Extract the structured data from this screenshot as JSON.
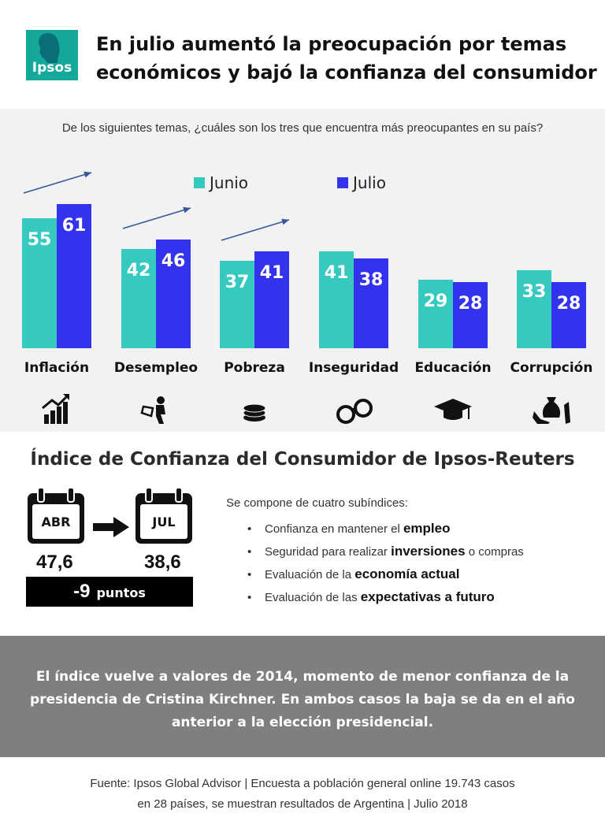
{
  "header": {
    "logo_text": "Ipsos",
    "title_line1": "En julio aumentó la preocupación por temas",
    "title_line2": "económicos y bajó la confianza del consumidor"
  },
  "chart_section": {
    "question": "De los siguientes temas, ¿cuáles son los tres que encuentra más preocupantes en su país?"
  },
  "chart_data": {
    "type": "bar",
    "title": "De los siguientes temas, ¿cuáles son los tres que encuentra más preocupantes en su país?",
    "categories": [
      "Inflación",
      "Desempleo",
      "Pobreza",
      "Inseguridad",
      "Educación",
      "Corrupción"
    ],
    "series": [
      {
        "name": "Junio",
        "values": [
          55,
          42,
          37,
          41,
          29,
          33
        ],
        "color": "#35c9bf"
      },
      {
        "name": "Julio",
        "values": [
          61,
          46,
          41,
          38,
          28,
          28
        ],
        "color": "#3333ee"
      }
    ],
    "increase_arrows": [
      "Inflación",
      "Desempleo",
      "Pobreza"
    ],
    "icons": [
      "chart-up-icon",
      "reading-person-icon",
      "coins-icon",
      "handcuffs-icon",
      "graduation-cap-icon",
      "money-bag-icon"
    ],
    "legend_position": "top",
    "xlabel": "",
    "ylabel": "",
    "ylim": [
      0,
      70
    ],
    "grid": false
  },
  "index_section": {
    "title": "Índice de Confianza del Consumidor de Ipsos-Reuters",
    "from_label": "ABR",
    "to_label": "JUL",
    "from_value": "47,6",
    "to_value": "38,6",
    "change_value": "-9",
    "change_unit": "puntos",
    "subindices_intro": "Se compone de cuatro subíndices:",
    "subindices": [
      {
        "pre": "Confianza en mantener el ",
        "bold": "empleo",
        "post": ""
      },
      {
        "pre": "Seguridad para realizar ",
        "bold": "inversiones",
        "post": " o compras"
      },
      {
        "pre": "Evaluación de la ",
        "bold": "economía actual",
        "post": ""
      },
      {
        "pre": "Evaluación de las ",
        "bold": "expectativas a futuro",
        "post": ""
      }
    ]
  },
  "statement": {
    "text_line1": "El índice vuelve a valores de 2014, momento de menor confianza de la",
    "text_line2": "presidencia de Cristina Kirchner. En ambos casos la baja se da en el año",
    "text_line3": "anterior a la elección presidencial."
  },
  "footer": {
    "line1": "Fuente: Ipsos Global Advisor | Encuesta a población general online 19.743 casos",
    "line2": "en 28 países, se muestran resultados de Argentina | Julio 2018"
  }
}
